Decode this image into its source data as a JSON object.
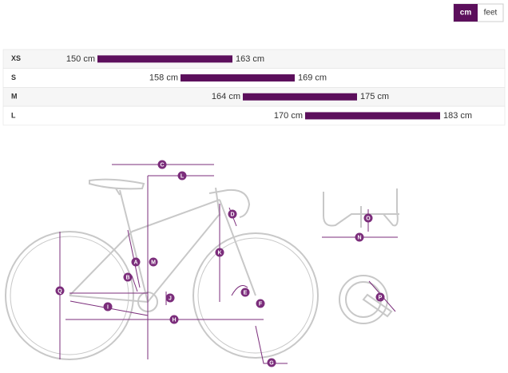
{
  "units_toggle": [
    "cm",
    "feet"
  ],
  "sizes": [
    {
      "size": "XS",
      "from": 150,
      "from_label": "150 cm",
      "to": 163,
      "to_label": "163 cm"
    },
    {
      "size": "S",
      "from": 158,
      "from_label": "158 cm",
      "to": 169,
      "to_label": "169 cm"
    },
    {
      "size": "M",
      "from": 164,
      "from_label": "164 cm",
      "to": 175,
      "to_label": "175 cm"
    },
    {
      "size": "L",
      "from": 170,
      "from_label": "170 cm",
      "to": 183,
      "to_label": "183 cm"
    }
  ],
  "diagram_labels": [
    "C",
    "L",
    "D",
    "K",
    "M",
    "A",
    "B",
    "E",
    "J",
    "F",
    "I",
    "H",
    "G",
    "Q",
    "O",
    "N",
    "P"
  ]
}
